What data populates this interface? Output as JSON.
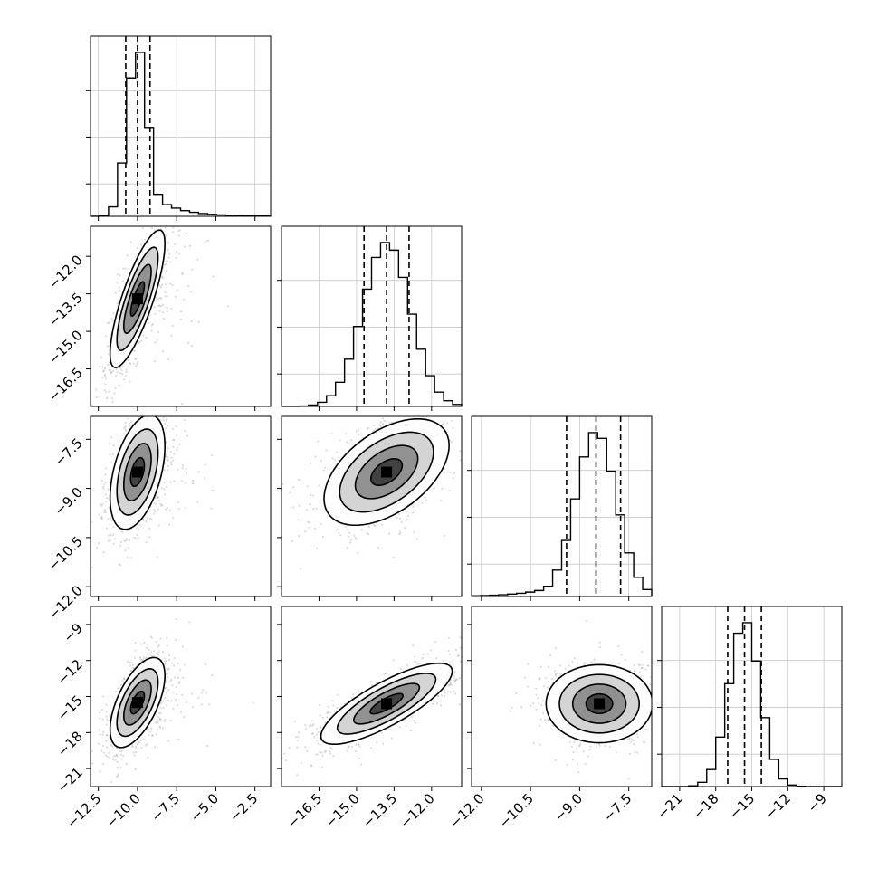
{
  "chart_data": {
    "type": "corner",
    "parameters": [
      "p0",
      "p1",
      "p2",
      "p3"
    ],
    "axes": {
      "p0": {
        "range": [
          -13,
          -1.5
        ],
        "ticks": [
          -12.5,
          -10.0,
          -7.5,
          -5.0,
          -2.5
        ],
        "tick_labels": [
          "−12.5",
          "−10.0",
          "−7.5",
          "−5.0",
          "−2.5"
        ]
      },
      "p1": {
        "range": [
          -18,
          -10.8
        ],
        "ticks": [
          -16.5,
          -15.0,
          -13.5,
          -12.0
        ],
        "tick_labels": [
          "−16.5",
          "−15.0",
          "−13.5",
          "−12.0"
        ]
      },
      "p2": {
        "range": [
          -12.3,
          -6.8
        ],
        "ticks": [
          -12.0,
          -10.5,
          -9.0,
          -7.5
        ],
        "tick_labels": [
          "−12.0",
          "−10.5",
          "−9.0",
          "−7.5"
        ]
      },
      "p3": {
        "range": [
          -22.5,
          -7.5
        ],
        "ticks": [
          -21,
          -18,
          -15,
          -12,
          -9
        ],
        "tick_labels": [
          "−21",
          "−18",
          "−15",
          "−12",
          "−9"
        ]
      }
    },
    "marginals": [
      {
        "param": "p0",
        "mean": -10.0,
        "sd": 0.65,
        "skew_tail": 0.75,
        "quantiles": [
          -10.75,
          -10.0,
          -9.2
        ]
      },
      {
        "param": "p1",
        "mean": -13.8,
        "sd": 0.95,
        "quantiles": [
          -14.7,
          -13.8,
          -12.9
        ]
      },
      {
        "param": "p2",
        "mean": -8.5,
        "sd": 0.62,
        "left_tail": true,
        "quantiles": [
          -9.4,
          -8.5,
          -7.75
        ]
      },
      {
        "param": "p3",
        "mean": -15.6,
        "sd": 1.3,
        "quantiles": [
          -17.0,
          -15.6,
          -14.2
        ]
      }
    ],
    "pairs": [
      {
        "x": "p0",
        "y": "p1",
        "mean": [
          -10.0,
          -13.7
        ],
        "sd": [
          0.7,
          1.1
        ],
        "rho": 0.8
      },
      {
        "x": "p0",
        "y": "p2",
        "mean": [
          -10.0,
          -8.5
        ],
        "sd": [
          0.7,
          0.7
        ],
        "rho": 0.45
      },
      {
        "x": "p1",
        "y": "p2",
        "mean": [
          -13.8,
          -8.5
        ],
        "sd": [
          1.0,
          0.65
        ],
        "rho": 0.5
      },
      {
        "x": "p0",
        "y": "p3",
        "mean": [
          -10.0,
          -15.5
        ],
        "sd": [
          0.7,
          1.5
        ],
        "rho": 0.6
      },
      {
        "x": "p1",
        "y": "p3",
        "mean": [
          -13.8,
          -15.6
        ],
        "sd": [
          1.05,
          1.35
        ],
        "rho": 0.8
      },
      {
        "x": "p2",
        "y": "p3",
        "mean": [
          -8.4,
          -15.6
        ],
        "sd": [
          0.65,
          1.3
        ],
        "rho": 0.0
      }
    ],
    "contour_levels_sigma": [
      0.5,
      1.0,
      1.5,
      2.0
    ],
    "quantile_style": "dashed",
    "grid": true,
    "title": "",
    "xlabel": "",
    "ylabel": ""
  }
}
